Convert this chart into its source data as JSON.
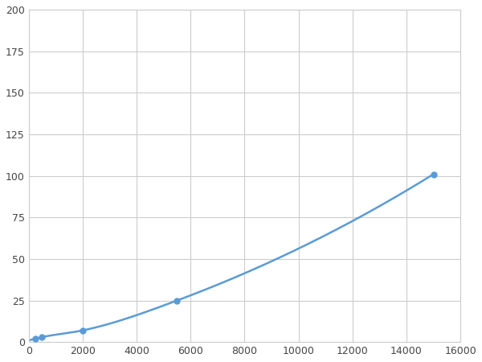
{
  "x": [
    250,
    500,
    2000,
    5500,
    15000
  ],
  "y": [
    2,
    3,
    7,
    25,
    101
  ],
  "line_color": "#5B9BD5",
  "marker_color": "#5B9BD5",
  "marker_size": 5,
  "line_width": 1.8,
  "xlim": [
    0,
    16000
  ],
  "ylim": [
    0,
    200
  ],
  "xticks": [
    0,
    2000,
    4000,
    6000,
    8000,
    10000,
    12000,
    14000,
    16000
  ],
  "yticks": [
    0,
    25,
    50,
    75,
    100,
    125,
    150,
    175,
    200
  ],
  "grid_color": "#cccccc",
  "bg_color": "#ffffff",
  "figsize": [
    6.0,
    4.5
  ],
  "dpi": 100
}
